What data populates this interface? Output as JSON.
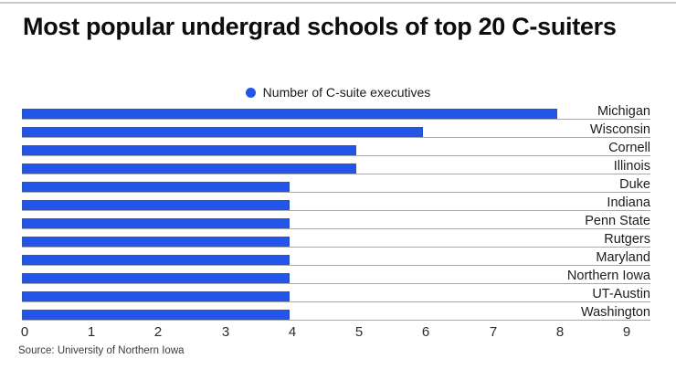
{
  "page": {
    "title": "Most popular undergrad schools of top 20 C-suiters",
    "source": "Source: University of Northern Iowa"
  },
  "legend": {
    "label": "Number of C-suite executives",
    "marker_color": "#2356e8"
  },
  "chart_data": {
    "type": "bar",
    "orientation": "horizontal",
    "title": "Most popular undergrad schools of top 20 C-suiters",
    "legend_entries": [
      "Number of C-suite executives"
    ],
    "categories": [
      "Michigan",
      "Wisconsin",
      "Cornell",
      "Illinois",
      "Duke",
      "Indiana",
      "Penn State",
      "Rutgers",
      "Maryland",
      "Northern Iowa",
      "UT-Austin",
      "Washington"
    ],
    "values": [
      8,
      6,
      5,
      5,
      4,
      4,
      4,
      4,
      4,
      4,
      4,
      4
    ],
    "xlabel": "",
    "ylabel": "",
    "xlim": [
      0,
      9
    ],
    "x_ticks": [
      "0",
      "1",
      "2",
      "3",
      "4",
      "5",
      "6",
      "7",
      "8",
      "9"
    ],
    "bar_color": "#2356e8",
    "gridline_color": "#a8a8a8",
    "grid": "horizontal-row-underlines",
    "legend_position": "top-center",
    "source": "Source: University of Northern Iowa"
  }
}
